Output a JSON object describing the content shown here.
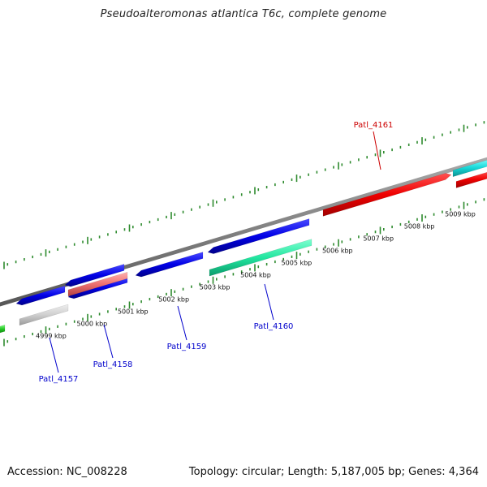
{
  "title": "Pseudoalteromonas atlantica T6c, complete genome",
  "footer": {
    "accession": "Accession: NC_008228",
    "summary": "Topology: circular; Length: 5,187,005 bp; Genes: 4,364"
  },
  "colors": {
    "background": "#ffffff",
    "backbone": "#808080",
    "ticks": "#2e8b2e",
    "forward_label": "#cc0000",
    "reverse_label": "#0000cc"
  },
  "ticks": [
    "4999 kbp",
    "5000 kbp",
    "5001 kbp",
    "5002 kbp",
    "5003 kbp",
    "5004 kbp",
    "5005 kbp",
    "5006 kbp",
    "5007 kbp",
    "5008 kbp",
    "5009 kbp"
  ],
  "genes": [
    {
      "name": "Patl_4157",
      "strand": "reverse",
      "color": "#0000cc"
    },
    {
      "name": "Patl_4158",
      "strand": "reverse",
      "color": "#0000cc"
    },
    {
      "name": "Patl_4159",
      "strand": "reverse",
      "color": "#0000cc"
    },
    {
      "name": "Patl_4160",
      "strand": "reverse",
      "color": "#0000cc"
    },
    {
      "name": "Patl_4161",
      "strand": "forward",
      "color": "#cc0000"
    }
  ]
}
